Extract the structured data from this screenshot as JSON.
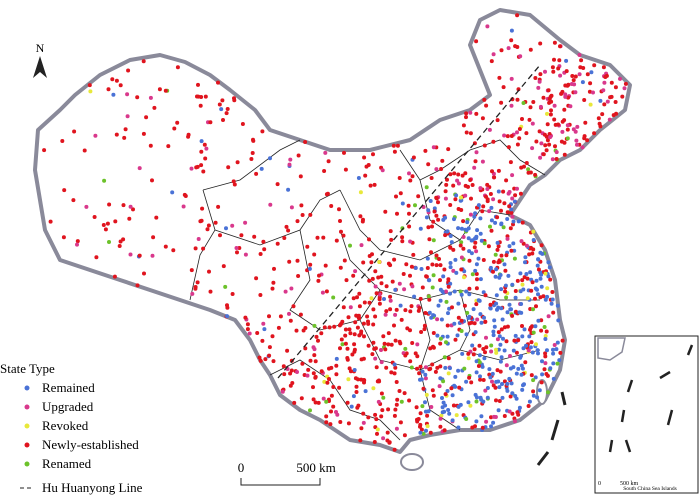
{
  "map": {
    "north_label": "N",
    "legend": {
      "title": "State Type",
      "items": [
        {
          "label": "Remained",
          "color": "#4a72d6"
        },
        {
          "label": "Upgraded",
          "color": "#d9388c"
        },
        {
          "label": "Revoked",
          "color": "#e8e83a"
        },
        {
          "label": "Newly-established",
          "color": "#e0141e"
        },
        {
          "label": "Renamed",
          "color": "#6cc22a"
        }
      ],
      "hu_line": {
        "label": "Hu Huanyong Line"
      }
    },
    "scale_bar": {
      "start_label": "0",
      "end_label": "500 km"
    },
    "inset": {
      "scale_start_label": "0",
      "scale_end_label": "500 km",
      "title": "South China Sea Islands"
    }
  }
}
